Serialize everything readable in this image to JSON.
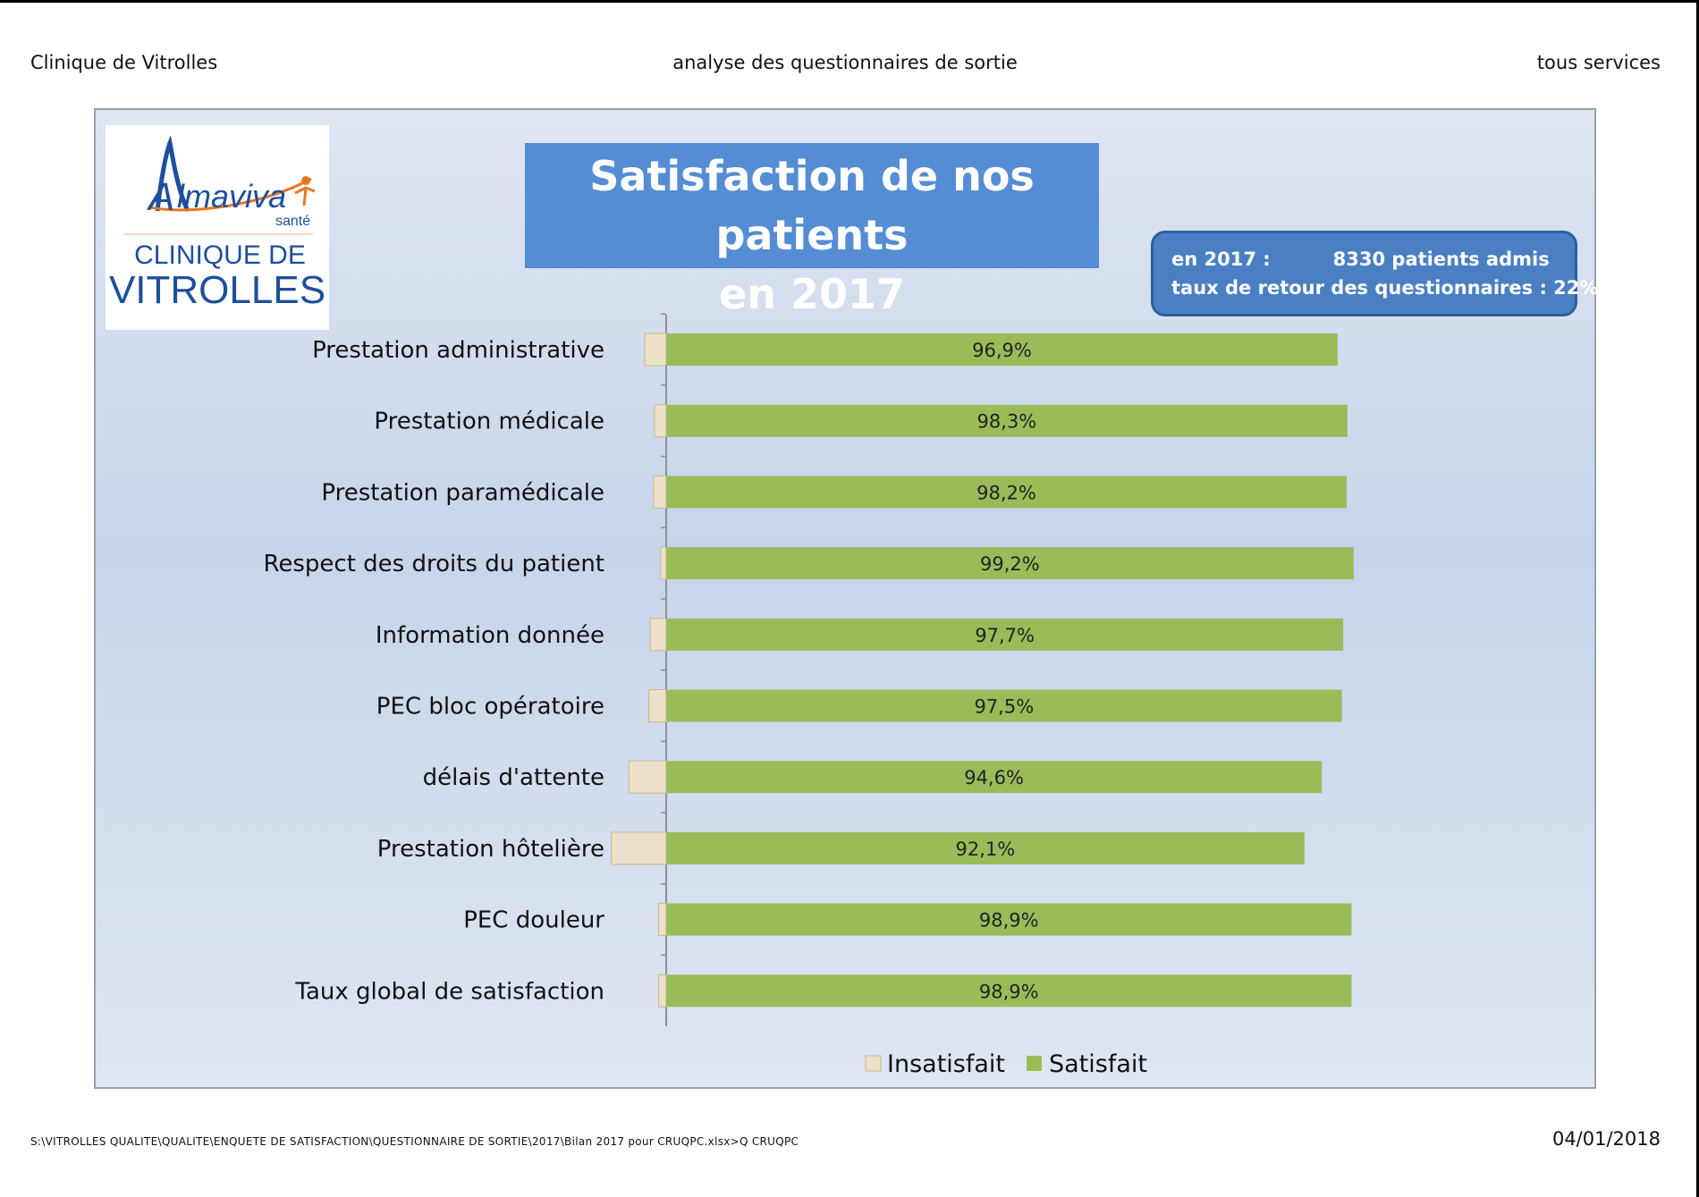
{
  "header": {
    "left": "Clinique de Vitrolles",
    "center": "analyse des questionnaires de sortie",
    "right": "tous services"
  },
  "logo": {
    "brand": "lmaviva",
    "brand_initial": "A",
    "brand_sub": "santé",
    "line1": "CLINIQUE DE",
    "line2": "VITROLLES"
  },
  "info": {
    "line1_left": "en 2017 :",
    "line1_right": "8330 patients admis",
    "line2": "taux de retour des questionnaires : 22%"
  },
  "colors": {
    "satisfait": "#9bbb59",
    "insatisfait": "#ece0c8",
    "title_bg": "#548dd4",
    "info_bg": "#4a7fc3"
  },
  "chart_data": {
    "type": "bar",
    "orientation": "horizontal",
    "stacked": true,
    "title": "Satisfaction de nos patients en 2017",
    "title_lines": [
      "Satisfaction de nos patients",
      "en 2017"
    ],
    "categories": [
      "Prestation administrative",
      "Prestation médicale",
      "Prestation paramédicale",
      "Respect des droits du patient",
      "Information donnée",
      "PEC bloc opératoire",
      "délais d'attente",
      "Prestation hôtelière",
      "PEC douleur",
      "Taux global de satisfaction"
    ],
    "series": [
      {
        "name": "Insatisfait",
        "values": [
          3.1,
          1.7,
          1.8,
          0.8,
          2.3,
          2.5,
          5.4,
          7.9,
          1.1,
          1.1
        ],
        "direction": "negative"
      },
      {
        "name": "Satisfait",
        "values": [
          96.9,
          98.3,
          98.2,
          99.2,
          97.7,
          97.5,
          94.6,
          92.1,
          98.9,
          98.9
        ],
        "labels": [
          "96,9%",
          "98,3%",
          "98,2%",
          "99,2%",
          "97,7%",
          "97,5%",
          "94,6%",
          "92,1%",
          "98,9%",
          "98,9%"
        ]
      }
    ],
    "legend_position": "bottom",
    "grid": false
  },
  "footer": {
    "path": "S:\\VITROLLES QUALITE\\QUALITE\\ENQUETE DE SATISFACTION\\QUESTIONNAIRE DE SORTIE\\2017\\Bilan 2017 pour CRUQPC.xlsx>Q CRUQPC",
    "date": "04/01/2018"
  }
}
